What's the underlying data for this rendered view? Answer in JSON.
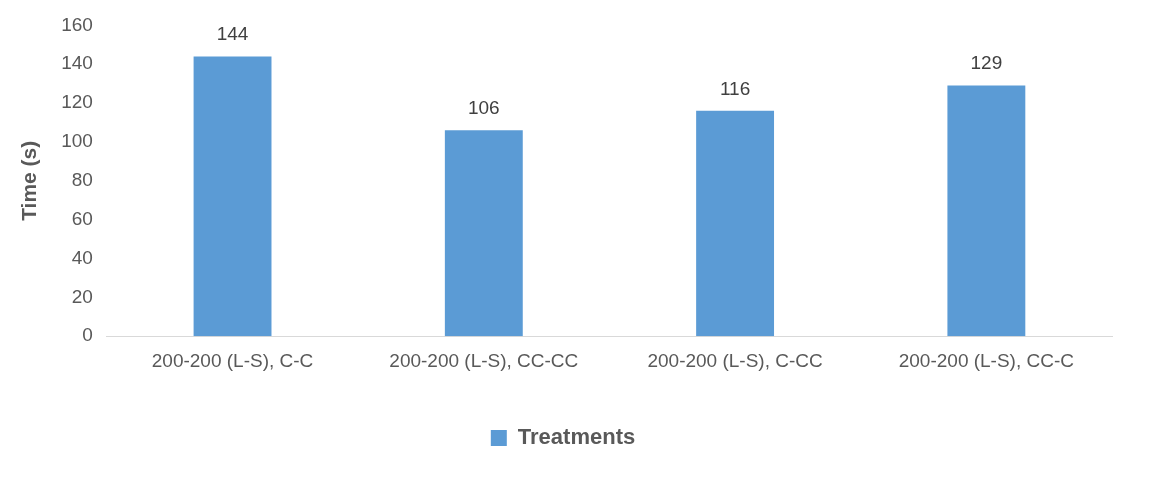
{
  "chart_data": {
    "type": "bar",
    "ylabel": "Time (s)",
    "categories": [
      "200-200 (L-S), C-C",
      "200-200 (L-S), CC-CC",
      "200-200 (L-S), C-CC",
      "200-200 (L-S), CC-C"
    ],
    "series": [
      {
        "name": "Treatments",
        "color": "#5b9bd5",
        "values": [
          144,
          106,
          116,
          129
        ]
      }
    ],
    "ylim": [
      0,
      160
    ],
    "yticks": [
      0,
      20,
      40,
      60,
      80,
      100,
      120,
      140,
      160
    ],
    "data_labels": true,
    "legend": "bottom",
    "grid": false
  }
}
